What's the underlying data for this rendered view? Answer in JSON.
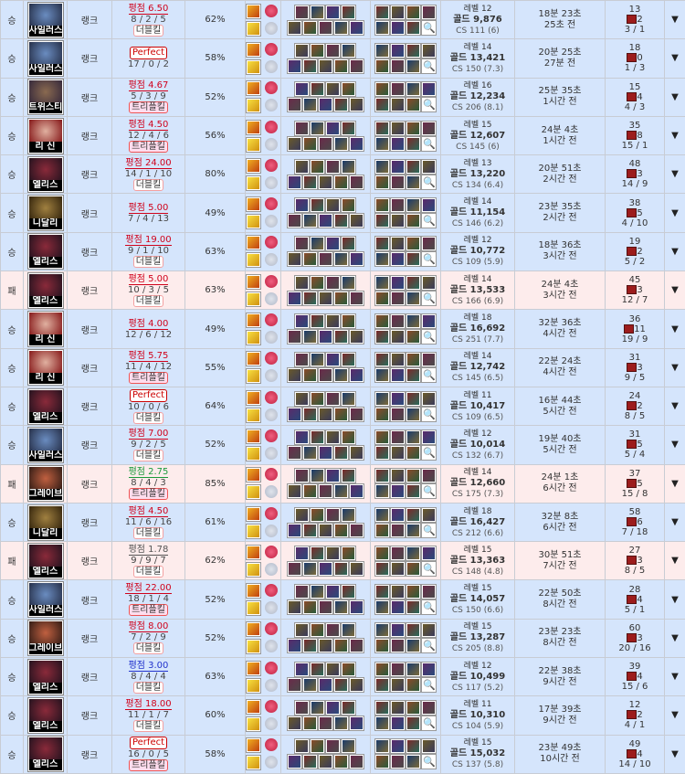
{
  "colors": {
    "win_bg": "#d5e5fc",
    "loss_bg": "#fdecec",
    "score_red": "#d0021b",
    "score_green": "#1a9a3a",
    "score_blue": "#2233cc",
    "score_gray": "#555555"
  },
  "icons": {
    "ward": "ward-icon",
    "expand": "triangle-down-icon",
    "search": "magnifier-icon"
  },
  "expand_glyph": "▼",
  "search_glyph": "🔍",
  "games": [
    {
      "result": "승",
      "champion": "사일러스",
      "mode": "랭크",
      "score": "평점 6.50",
      "score_color": "red",
      "perfect": false,
      "kda": "8 / 2 / 5",
      "badge": "더블킬",
      "winrate": "62%",
      "level": "레벨 12",
      "gold": "골드 9,876",
      "cs": "CS 111 (6)",
      "duration": "18분 23초",
      "ago": "25초 전",
      "kp": "13",
      "wards": "2",
      "ratio": "3 / 1"
    },
    {
      "result": "승",
      "champion": "사일러스",
      "mode": "랭크",
      "score": "Perfect",
      "score_color": "red",
      "perfect": true,
      "kda": "17 / 0 / 2",
      "badge": "",
      "winrate": "58%",
      "level": "레벨 14",
      "gold": "골드 13,421",
      "cs": "CS 150 (7.3)",
      "duration": "20분 25초",
      "ago": "27분 전",
      "kp": "18",
      "wards": "0",
      "ratio": "1 / 3"
    },
    {
      "result": "승",
      "champion": "트위스티",
      "mode": "랭크",
      "score": "평점 4.67",
      "score_color": "red",
      "perfect": false,
      "kda": "5 / 3 / 9",
      "badge": "트리플킬",
      "winrate": "52%",
      "level": "레벨 16",
      "gold": "골드 12,234",
      "cs": "CS 206 (8.1)",
      "duration": "25분 35초",
      "ago": "1시간 전",
      "kp": "15",
      "wards": "4",
      "ratio": "4 / 3"
    },
    {
      "result": "승",
      "champion": "리 신",
      "mode": "랭크",
      "score": "평점 4.50",
      "score_color": "red",
      "perfect": false,
      "kda": "12 / 4 / 6",
      "badge": "트리플킬",
      "winrate": "56%",
      "level": "레벨 15",
      "gold": "골드 12,607",
      "cs": "CS 145 (6)",
      "duration": "24분 4초",
      "ago": "1시간 전",
      "kp": "35",
      "wards": "8",
      "ratio": "15 / 1"
    },
    {
      "result": "승",
      "champion": "엘리스",
      "mode": "랭크",
      "score": "평점 24.00",
      "score_color": "red",
      "perfect": false,
      "kda": "14 / 1 / 10",
      "badge": "더블킬",
      "winrate": "80%",
      "level": "레벨 13",
      "gold": "골드 13,220",
      "cs": "CS 134 (6.4)",
      "duration": "20분 51초",
      "ago": "2시간 전",
      "kp": "48",
      "wards": "3",
      "ratio": "14 / 9"
    },
    {
      "result": "승",
      "champion": "니달리",
      "mode": "랭크",
      "score": "평점 5.00",
      "score_color": "red",
      "perfect": false,
      "kda": "7 / 4 / 13",
      "badge": "",
      "winrate": "49%",
      "level": "레벨 14",
      "gold": "골드 11,154",
      "cs": "CS 146 (6.2)",
      "duration": "23분 35초",
      "ago": "2시간 전",
      "kp": "38",
      "wards": "5",
      "ratio": "4 / 10"
    },
    {
      "result": "승",
      "champion": "엘리스",
      "mode": "랭크",
      "score": "평점 19.00",
      "score_color": "red",
      "perfect": false,
      "kda": "9 / 1 / 10",
      "badge": "더블킬",
      "winrate": "63%",
      "level": "레벨 12",
      "gold": "골드 10,772",
      "cs": "CS 109 (5.9)",
      "duration": "18분 36초",
      "ago": "3시간 전",
      "kp": "19",
      "wards": "2",
      "ratio": "5 / 2"
    },
    {
      "result": "패",
      "champion": "엘리스",
      "mode": "랭크",
      "score": "평점 5.00",
      "score_color": "red",
      "perfect": false,
      "kda": "10 / 3 / 5",
      "badge": "더블킬",
      "winrate": "63%",
      "level": "레벨 14",
      "gold": "골드 13,533",
      "cs": "CS 166 (6.9)",
      "duration": "24분 4초",
      "ago": "3시간 전",
      "kp": "45",
      "wards": "3",
      "ratio": "12 / 7"
    },
    {
      "result": "승",
      "champion": "리 신",
      "mode": "랭크",
      "score": "평점 4.00",
      "score_color": "red",
      "perfect": false,
      "kda": "12 / 6 / 12",
      "badge": "",
      "winrate": "49%",
      "level": "레벨 18",
      "gold": "골드 16,692",
      "cs": "CS 251 (7.7)",
      "duration": "32분 36초",
      "ago": "4시간 전",
      "kp": "36",
      "wards": "11",
      "ratio": "19 / 9"
    },
    {
      "result": "승",
      "champion": "리 신",
      "mode": "랭크",
      "score": "평점 5.75",
      "score_color": "red",
      "perfect": false,
      "kda": "11 / 4 / 12",
      "badge": "트리플킬",
      "winrate": "55%",
      "level": "레벨 14",
      "gold": "골드 12,742",
      "cs": "CS 145 (6.5)",
      "duration": "22분 24초",
      "ago": "4시간 전",
      "kp": "31",
      "wards": "3",
      "ratio": "9 / 5"
    },
    {
      "result": "승",
      "champion": "엘리스",
      "mode": "랭크",
      "score": "Perfect",
      "score_color": "red",
      "perfect": true,
      "kda": "10 / 0 / 6",
      "badge": "더블킬",
      "winrate": "64%",
      "level": "레벨 11",
      "gold": "골드 10,417",
      "cs": "CS 109 (6.5)",
      "duration": "16분 44초",
      "ago": "5시간 전",
      "kp": "24",
      "wards": "2",
      "ratio": "8 / 5"
    },
    {
      "result": "승",
      "champion": "사일러스",
      "mode": "랭크",
      "score": "평점 7.00",
      "score_color": "red",
      "perfect": false,
      "kda": "9 / 2 / 5",
      "badge": "더블킬",
      "winrate": "52%",
      "level": "레벨 12",
      "gold": "골드 10,014",
      "cs": "CS 132 (6.7)",
      "duration": "19분 40초",
      "ago": "5시간 전",
      "kp": "31",
      "wards": "5",
      "ratio": "5 / 4"
    },
    {
      "result": "패",
      "champion": "그레이브",
      "mode": "랭크",
      "score": "평점 2.75",
      "score_color": "green",
      "perfect": false,
      "kda": "8 / 4 / 3",
      "badge": "트리플킬",
      "winrate": "85%",
      "level": "레벨 14",
      "gold": "골드 12,660",
      "cs": "CS 175 (7.3)",
      "duration": "24분 1초",
      "ago": "6시간 전",
      "kp": "37",
      "wards": "5",
      "ratio": "15 / 8"
    },
    {
      "result": "승",
      "champion": "니달리",
      "mode": "랭크",
      "score": "평점 4.50",
      "score_color": "red",
      "perfect": false,
      "kda": "11 / 6 / 16",
      "badge": "더블킬",
      "winrate": "61%",
      "level": "레벨 18",
      "gold": "골드 16,427",
      "cs": "CS 212 (6.6)",
      "duration": "32분 8초",
      "ago": "6시간 전",
      "kp": "58",
      "wards": "6",
      "ratio": "7 / 18"
    },
    {
      "result": "패",
      "champion": "엘리스",
      "mode": "랭크",
      "score": "평점 1.78",
      "score_color": "gray",
      "perfect": false,
      "kda": "9 / 9 / 7",
      "badge": "더블킬",
      "winrate": "62%",
      "level": "레벨 15",
      "gold": "골드 13,363",
      "cs": "CS 148 (4.8)",
      "duration": "30분 51초",
      "ago": "7시간 전",
      "kp": "27",
      "wards": "3",
      "ratio": "8 / 5"
    },
    {
      "result": "승",
      "champion": "사일러스",
      "mode": "랭크",
      "score": "평점 22.00",
      "score_color": "red",
      "perfect": false,
      "kda": "18 / 1 / 4",
      "badge": "트리플킬",
      "winrate": "52%",
      "level": "레벨 15",
      "gold": "골드 14,057",
      "cs": "CS 150 (6.6)",
      "duration": "22분 50초",
      "ago": "8시간 전",
      "kp": "28",
      "wards": "4",
      "ratio": "5 / 1"
    },
    {
      "result": "승",
      "champion": "그레이브",
      "mode": "랭크",
      "score": "평점 8.00",
      "score_color": "red",
      "perfect": false,
      "kda": "7 / 2 / 9",
      "badge": "더블킬",
      "winrate": "52%",
      "level": "레벨 15",
      "gold": "골드 13,287",
      "cs": "CS 205 (8.8)",
      "duration": "23분 23초",
      "ago": "8시간 전",
      "kp": "60",
      "wards": "3",
      "ratio": "20 / 16"
    },
    {
      "result": "승",
      "champion": "엘리스",
      "mode": "랭크",
      "score": "평점 3.00",
      "score_color": "blue",
      "perfect": false,
      "kda": "8 / 4 / 4",
      "badge": "더블킬",
      "winrate": "63%",
      "level": "레벨 12",
      "gold": "골드 10,499",
      "cs": "CS 117 (5.2)",
      "duration": "22분 38초",
      "ago": "9시간 전",
      "kp": "39",
      "wards": "4",
      "ratio": "15 / 6"
    },
    {
      "result": "승",
      "champion": "엘리스",
      "mode": "랭크",
      "score": "평점 18.00",
      "score_color": "red",
      "perfect": false,
      "kda": "11 / 1 / 7",
      "badge": "더블킬",
      "winrate": "60%",
      "level": "레벨 11",
      "gold": "골드 10,310",
      "cs": "CS 104 (5.9)",
      "duration": "17분 39초",
      "ago": "9시간 전",
      "kp": "12",
      "wards": "2",
      "ratio": "4 / 1"
    },
    {
      "result": "승",
      "champion": "엘리스",
      "mode": "랭크",
      "score": "Perfect",
      "score_color": "red",
      "perfect": true,
      "kda": "16 / 0 / 5",
      "badge": "트리플킬",
      "winrate": "58%",
      "level": "레벨 15",
      "gold": "골드 15,032",
      "cs": "CS 137 (5.8)",
      "duration": "23분 49초",
      "ago": "10시간 전",
      "kp": "49",
      "wards": "4",
      "ratio": "14 / 10"
    }
  ]
}
